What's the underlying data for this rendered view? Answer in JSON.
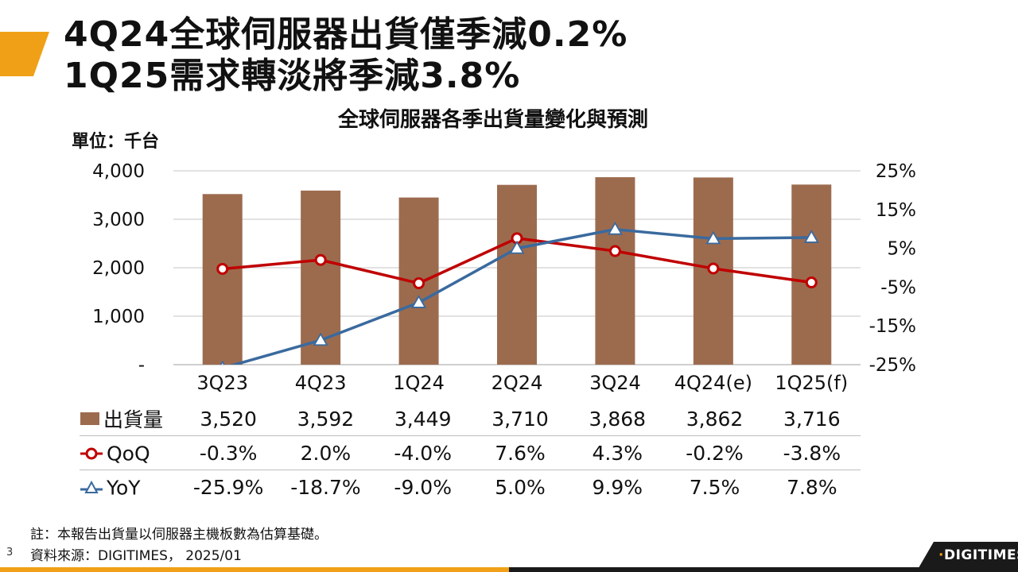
{
  "slide": {
    "headline_line1": "4Q24全球伺服器出貨僅季減0.2%",
    "headline_line2": "1Q25需求轉淡將季減3.8%",
    "page_number": "3",
    "footnote": "註：本報告出貨量以伺服器主機板數為估算基礎。",
    "source": "資料來源：DIGITIMES， 2025/01",
    "logo_text": "DIGITIMES",
    "logo_dot": "·",
    "colors": {
      "accent_orange": "#f0a016",
      "bar_brown": "#9c6b4e",
      "qoq_red": "#c00000",
      "yoy_blue": "#3a6a9e",
      "dark_bar": "#1a1a1a"
    }
  },
  "chart_data": {
    "type": "bar",
    "title": "全球伺服器各季出貨量變化與預測",
    "unit_label": "單位：千台",
    "categories": [
      "3Q23",
      "4Q23",
      "1Q24",
      "2Q24",
      "3Q24",
      "4Q24(e)",
      "1Q25(f)"
    ],
    "series": [
      {
        "name": "出貨量",
        "type": "bar",
        "axis": "left",
        "color": "#9c6b4e",
        "values": [
          3520,
          3592,
          3449,
          3710,
          3868,
          3862,
          3716
        ]
      },
      {
        "name": "QoQ",
        "type": "line",
        "axis": "right",
        "marker": "circle",
        "color": "#c00000",
        "values": [
          -0.3,
          2.0,
          -4.0,
          7.6,
          4.3,
          -0.2,
          -3.8
        ]
      },
      {
        "name": "YoY",
        "type": "line",
        "axis": "right",
        "marker": "triangle",
        "color": "#3a6a9e",
        "values": [
          -25.9,
          -18.7,
          -9.0,
          5.0,
          9.9,
          7.5,
          7.8
        ]
      }
    ],
    "y_left": {
      "min": 0,
      "max": 4000,
      "ticks": [
        0,
        1000,
        2000,
        3000,
        4000
      ],
      "tick_labels": [
        "-",
        "1,000",
        "2,000",
        "3,000",
        "4,000"
      ]
    },
    "y_right": {
      "min": -25,
      "max": 25,
      "ticks": [
        -25,
        -15,
        -5,
        5,
        15,
        25
      ],
      "tick_labels": [
        "-25%",
        "-15%",
        "-5%",
        "5%",
        "15%",
        "25%"
      ]
    },
    "grid": true,
    "table": {
      "rows": [
        {
          "label": "出貨量",
          "cells": [
            "3,520",
            "3,592",
            "3,449",
            "3,710",
            "3,868",
            "3,862",
            "3,716"
          ]
        },
        {
          "label": "QoQ",
          "cells": [
            "-0.3%",
            "2.0%",
            "-4.0%",
            "7.6%",
            "4.3%",
            "-0.2%",
            "-3.8%"
          ]
        },
        {
          "label": "YoY",
          "cells": [
            "-25.9%",
            "-18.7%",
            "-9.0%",
            "5.0%",
            "9.9%",
            "7.5%",
            "7.8%"
          ]
        }
      ]
    }
  }
}
